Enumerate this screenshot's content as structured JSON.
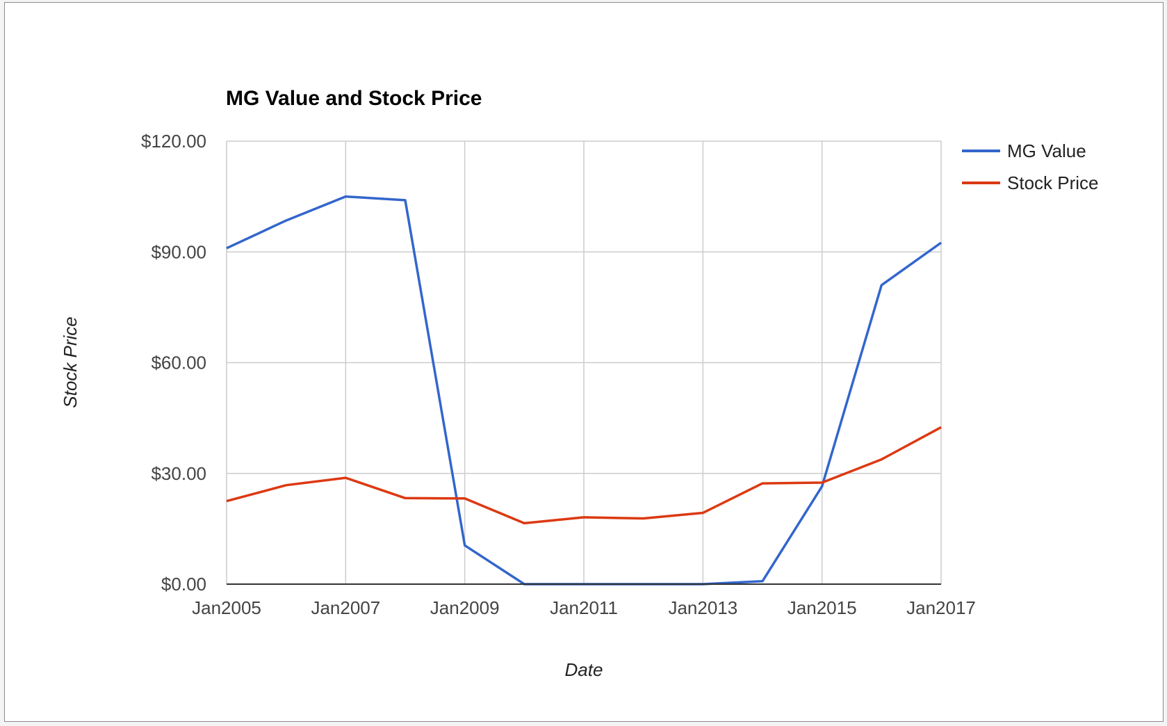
{
  "chart_data": {
    "type": "line",
    "title": "MG Value and Stock Price",
    "xlabel": "Date",
    "ylabel": "Stock Price",
    "x": [
      "Jan2005",
      "Jan2006",
      "Jan2007",
      "Jan2008",
      "Jan2009",
      "Jan2010",
      "Jan2011",
      "Jan2012",
      "Jan2013",
      "Jan2014",
      "Jan2015",
      "Jan2016",
      "Jan2017"
    ],
    "x_ticks": [
      "Jan2005",
      "Jan2007",
      "Jan2009",
      "Jan2011",
      "Jan2013",
      "Jan2015",
      "Jan2017"
    ],
    "y_ticks": [
      "$0.00",
      "$30.00",
      "$60.00",
      "$90.00",
      "$120.00"
    ],
    "ylim": [
      0,
      120
    ],
    "grid": true,
    "legend": "right",
    "series": [
      {
        "name": "MG Value",
        "color": "#3366cc",
        "values": [
          91.0,
          98.5,
          105.0,
          104.0,
          10.5,
          0.0,
          0.0,
          0.0,
          0.0,
          0.8,
          26.5,
          81.0,
          92.5
        ]
      },
      {
        "name": "Stock Price",
        "color": "#dc3912",
        "values": [
          22.5,
          26.8,
          28.8,
          23.3,
          23.2,
          16.5,
          18.1,
          17.8,
          19.3,
          27.3,
          27.5,
          33.8,
          42.5
        ]
      }
    ]
  }
}
